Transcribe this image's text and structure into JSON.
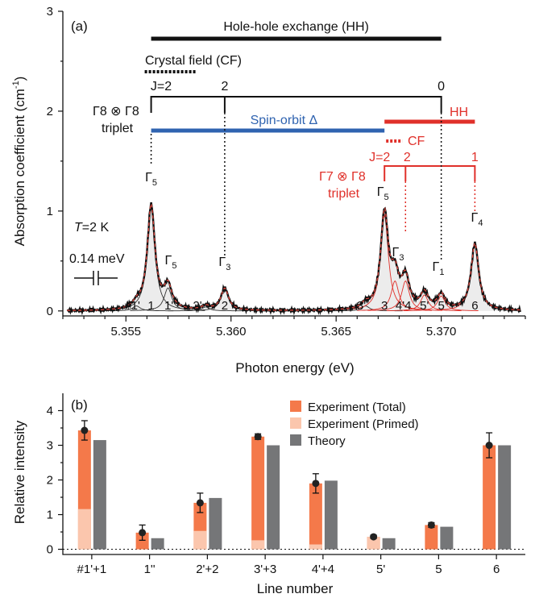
{
  "panel_a": {
    "label": "(a)",
    "xlabel": "Photon energy (eV)",
    "ylabel": "Absorption coefficient (cm",
    "ylabel_sup": "-1",
    "ylabel_end": ")",
    "temperature": "T=2 K",
    "scale_label": "0.14 meV",
    "hh_exchange": "Hole-hole exchange (HH)",
    "crystal_field": "Crystal field (CF)",
    "spin_orbit": "Spin-orbit Δ",
    "hh_short": "HH",
    "cf_short": "CF",
    "j_black": [
      "J=2",
      "2",
      "0"
    ],
    "j_red": [
      "J=2",
      "2",
      "1"
    ],
    "triplet_black": [
      "Γ8 ⊗ Γ8",
      "triplet"
    ],
    "triplet_red": [
      "Γ7 ⊗ Γ8",
      "triplet"
    ],
    "gamma_labels": [
      "Γ5",
      "Γ5",
      "Γ3",
      "Γ5",
      "Γ3",
      "Γ1",
      "Γ4"
    ],
    "line_labels": [
      "#1'",
      "1",
      "1''",
      "2'",
      "2",
      "3'",
      "3",
      "4'4",
      "5'",
      "5",
      "6"
    ],
    "xticks": [
      "5.355",
      "5.360",
      "5.365",
      "5.370"
    ],
    "yticks": [
      "0",
      "1",
      "2",
      "3"
    ]
  },
  "chart_data": [
    {
      "type": "line",
      "title": "",
      "xlabel": "Photon energy (eV)",
      "ylabel": "Absorption coefficient (cm-1)",
      "xlim": [
        5.352,
        5.374
      ],
      "ylim": [
        -0.05,
        3.0
      ],
      "peaks": [
        {
          "line": "#1'",
          "x": 5.3555,
          "height": 0.05,
          "gamma": ""
        },
        {
          "line": "1",
          "x": 5.3562,
          "height": 1.05,
          "gamma": "Γ5"
        },
        {
          "line": "1''",
          "x": 5.357,
          "height": 0.23,
          "gamma": "Γ5"
        },
        {
          "line": "2'",
          "x": 5.3588,
          "height": 0.04,
          "gamma": ""
        },
        {
          "line": "2",
          "x": 5.3597,
          "height": 0.22,
          "gamma": "Γ3"
        },
        {
          "line": "3'",
          "x": 5.3664,
          "height": 0.05,
          "gamma": ""
        },
        {
          "line": "3",
          "x": 5.3673,
          "height": 0.96,
          "gamma": "Γ5"
        },
        {
          "line": "4'",
          "x": 5.3678,
          "height": 0.3,
          "gamma": "Γ3"
        },
        {
          "line": "4",
          "x": 5.3683,
          "height": 0.3,
          "gamma": ""
        },
        {
          "line": "5'",
          "x": 5.3692,
          "height": 0.16,
          "gamma": ""
        },
        {
          "line": "5",
          "x": 5.37,
          "height": 0.15,
          "gamma": "Γ1"
        },
        {
          "line": "6",
          "x": 5.3716,
          "height": 0.67,
          "gamma": "Γ4"
        }
      ],
      "level_lines": {
        "hole_hole_exchange": [
          5.3562,
          5.37
        ],
        "crystal_field": [
          5.3562,
          5.3583
        ],
        "spin_orbit": [
          5.3562,
          5.3673
        ],
        "hh_red": [
          5.3673,
          5.3716
        ],
        "cf_red": [
          5.3673,
          5.3683
        ],
        "j_black_ticks": [
          5.3562,
          5.3597,
          5.37
        ],
        "j_red_ticks": [
          5.3673,
          5.3683,
          5.3716
        ]
      }
    },
    {
      "type": "bar",
      "title": "",
      "label": "(b)",
      "xlabel": "Line number",
      "ylabel": "Relative intensity",
      "categories": [
        "#1'+1",
        "1''",
        "2'+2",
        "3'+3",
        "4'+4",
        "5'",
        "5",
        "6"
      ],
      "ylim": [
        -0.15,
        4.5
      ],
      "yticks": [
        "0",
        "1",
        "2",
        "3",
        "4"
      ],
      "series": [
        {
          "name": "Experiment (Total)",
          "values": [
            3.43,
            0.48,
            1.34,
            3.25,
            1.9,
            0.36,
            0.7,
            3.0
          ],
          "errors": [
            0.28,
            0.22,
            0.28,
            0.08,
            0.28,
            0.05,
            0.07,
            0.36
          ]
        },
        {
          "name": "Experiment (Primed)",
          "values": [
            1.16,
            0,
            0.53,
            0.26,
            0.14,
            0.36,
            0,
            0
          ]
        },
        {
          "name": "Theory",
          "values": [
            3.15,
            0.32,
            1.48,
            3.0,
            1.98,
            0.32,
            0.65,
            3.0
          ]
        }
      ],
      "colors": {
        "total": "#f4794a",
        "primed": "#fbc6ad",
        "theory": "#757678"
      }
    }
  ]
}
